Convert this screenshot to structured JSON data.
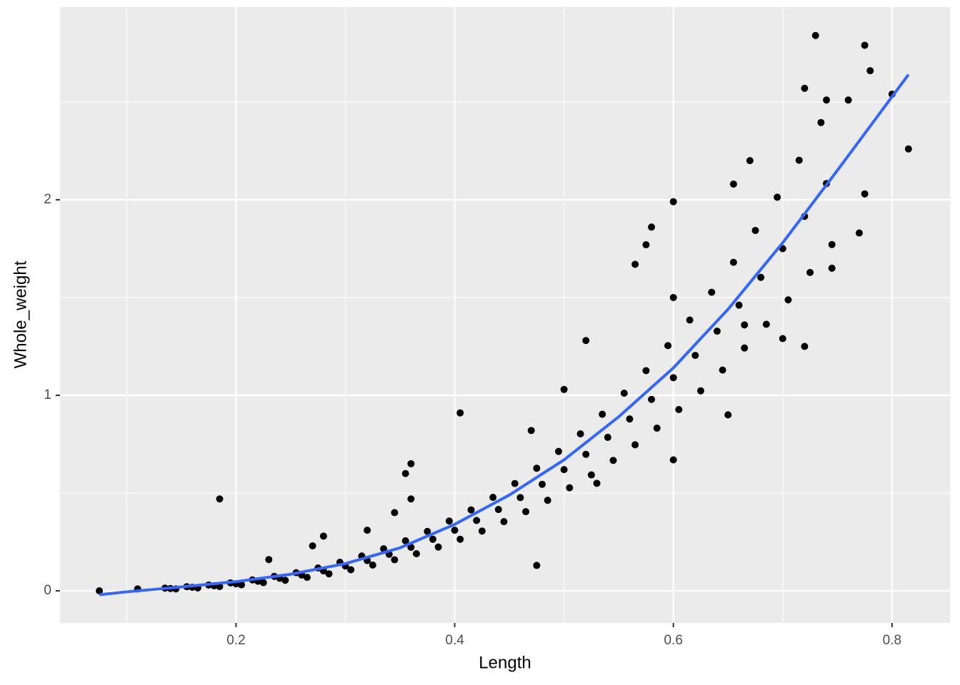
{
  "chart_data": {
    "type": "scatter",
    "x_label": "Length",
    "y_label": "Whole_weight",
    "xlim": [
      0.039,
      0.853
    ],
    "ylim": [
      -0.164,
      2.985
    ],
    "xticks": [
      0.2,
      0.4,
      0.6,
      0.8
    ],
    "yticks": [
      0,
      1,
      2
    ],
    "xminor": [
      0.1,
      0.3,
      0.5,
      0.7
    ],
    "yminor": [
      0.5,
      1.5,
      2.5
    ],
    "grid": true,
    "series": [
      {
        "type": "scatter",
        "color": "#000000",
        "x": [
          0.075,
          0.11,
          0.185,
          0.405,
          0.475,
          0.6,
          0.73,
          0.775,
          0.78,
          0.815,
          0.8,
          0.72,
          0.74,
          0.76,
          0.67,
          0.655,
          0.565,
          0.58,
          0.575,
          0.36,
          0.355,
          0.36,
          0.345,
          0.32,
          0.28,
          0.23,
          0.27,
          0.6,
          0.775,
          0.77,
          0.7,
          0.72,
          0.745,
          0.665,
          0.6,
          0.52,
          0.5,
          0.53,
          0.47,
          0.65,
          0.14,
          0.145,
          0.135,
          0.16,
          0.165,
          0.155,
          0.18,
          0.185,
          0.175,
          0.2,
          0.205,
          0.195,
          0.22,
          0.225,
          0.215,
          0.24,
          0.245,
          0.235,
          0.26,
          0.265,
          0.255,
          0.28,
          0.285,
          0.275,
          0.3,
          0.305,
          0.295,
          0.32,
          0.325,
          0.315,
          0.34,
          0.345,
          0.335,
          0.36,
          0.365,
          0.355,
          0.38,
          0.385,
          0.375,
          0.4,
          0.405,
          0.395,
          0.42,
          0.425,
          0.415,
          0.44,
          0.445,
          0.435,
          0.46,
          0.465,
          0.455,
          0.48,
          0.485,
          0.475,
          0.5,
          0.505,
          0.495,
          0.52,
          0.525,
          0.515,
          0.54,
          0.545,
          0.535,
          0.56,
          0.565,
          0.555,
          0.58,
          0.585,
          0.575,
          0.6,
          0.605,
          0.595,
          0.62,
          0.625,
          0.615,
          0.64,
          0.645,
          0.635,
          0.66,
          0.665,
          0.655,
          0.68,
          0.685,
          0.675,
          0.7,
          0.705,
          0.695,
          0.72,
          0.725,
          0.715,
          0.74,
          0.745,
          0.735
        ],
        "values": [
          0.0,
          0.01,
          0.47,
          0.91,
          0.13,
          1.99,
          2.84,
          2.79,
          2.66,
          2.26,
          2.54,
          2.57,
          2.51,
          2.51,
          2.2,
          2.08,
          1.67,
          1.86,
          1.77,
          0.47,
          0.6,
          0.65,
          0.4,
          0.31,
          0.28,
          0.16,
          0.23,
          0.67,
          2.03,
          1.83,
          1.29,
          1.25,
          1.65,
          1.36,
          1.5,
          1.28,
          1.03,
          0.55,
          0.82,
          0.9,
          0.012,
          0.01,
          0.014,
          0.018,
          0.015,
          0.021,
          0.026,
          0.022,
          0.03,
          0.036,
          0.031,
          0.041,
          0.049,
          0.042,
          0.056,
          0.064,
          0.054,
          0.074,
          0.081,
          0.069,
          0.093,
          0.102,
          0.087,
          0.117,
          0.127,
          0.108,
          0.146,
          0.155,
          0.132,
          0.178,
          0.187,
          0.159,
          0.215,
          0.223,
          0.19,
          0.256,
          0.264,
          0.224,
          0.304,
          0.31,
          0.264,
          0.357,
          0.36,
          0.306,
          0.414,
          0.416,
          0.354,
          0.478,
          0.477,
          0.405,
          0.549,
          0.545,
          0.463,
          0.627,
          0.62,
          0.527,
          0.713,
          0.698,
          0.593,
          0.803,
          0.785,
          0.667,
          0.903,
          0.879,
          0.747,
          1.011,
          0.979,
          0.832,
          1.126,
          1.09,
          0.927,
          1.254,
          1.204,
          1.023,
          1.385,
          1.328,
          1.129,
          1.527,
          1.461,
          1.242,
          1.68,
          1.603,
          1.363,
          1.843,
          1.75,
          1.488,
          2.013,
          1.915,
          1.628,
          2.202,
          2.083,
          1.771,
          2.395
        ]
      },
      {
        "type": "line",
        "color": "#3366ff",
        "x": [
          0.075,
          0.1,
          0.15,
          0.2,
          0.25,
          0.3,
          0.35,
          0.4,
          0.45,
          0.5,
          0.55,
          0.6,
          0.65,
          0.7,
          0.75,
          0.815
        ],
        "values": [
          -0.02,
          -0.005,
          0.02,
          0.047,
          0.085,
          0.139,
          0.22,
          0.34,
          0.49,
          0.67,
          0.89,
          1.14,
          1.44,
          1.78,
          2.15,
          2.64
        ]
      }
    ]
  }
}
